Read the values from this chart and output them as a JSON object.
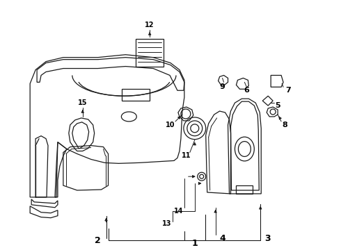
{
  "bg_color": "#ffffff",
  "line_color": "#1a1a1a",
  "label_color": "#000000",
  "label_fs": 8,
  "lw": 0.9
}
